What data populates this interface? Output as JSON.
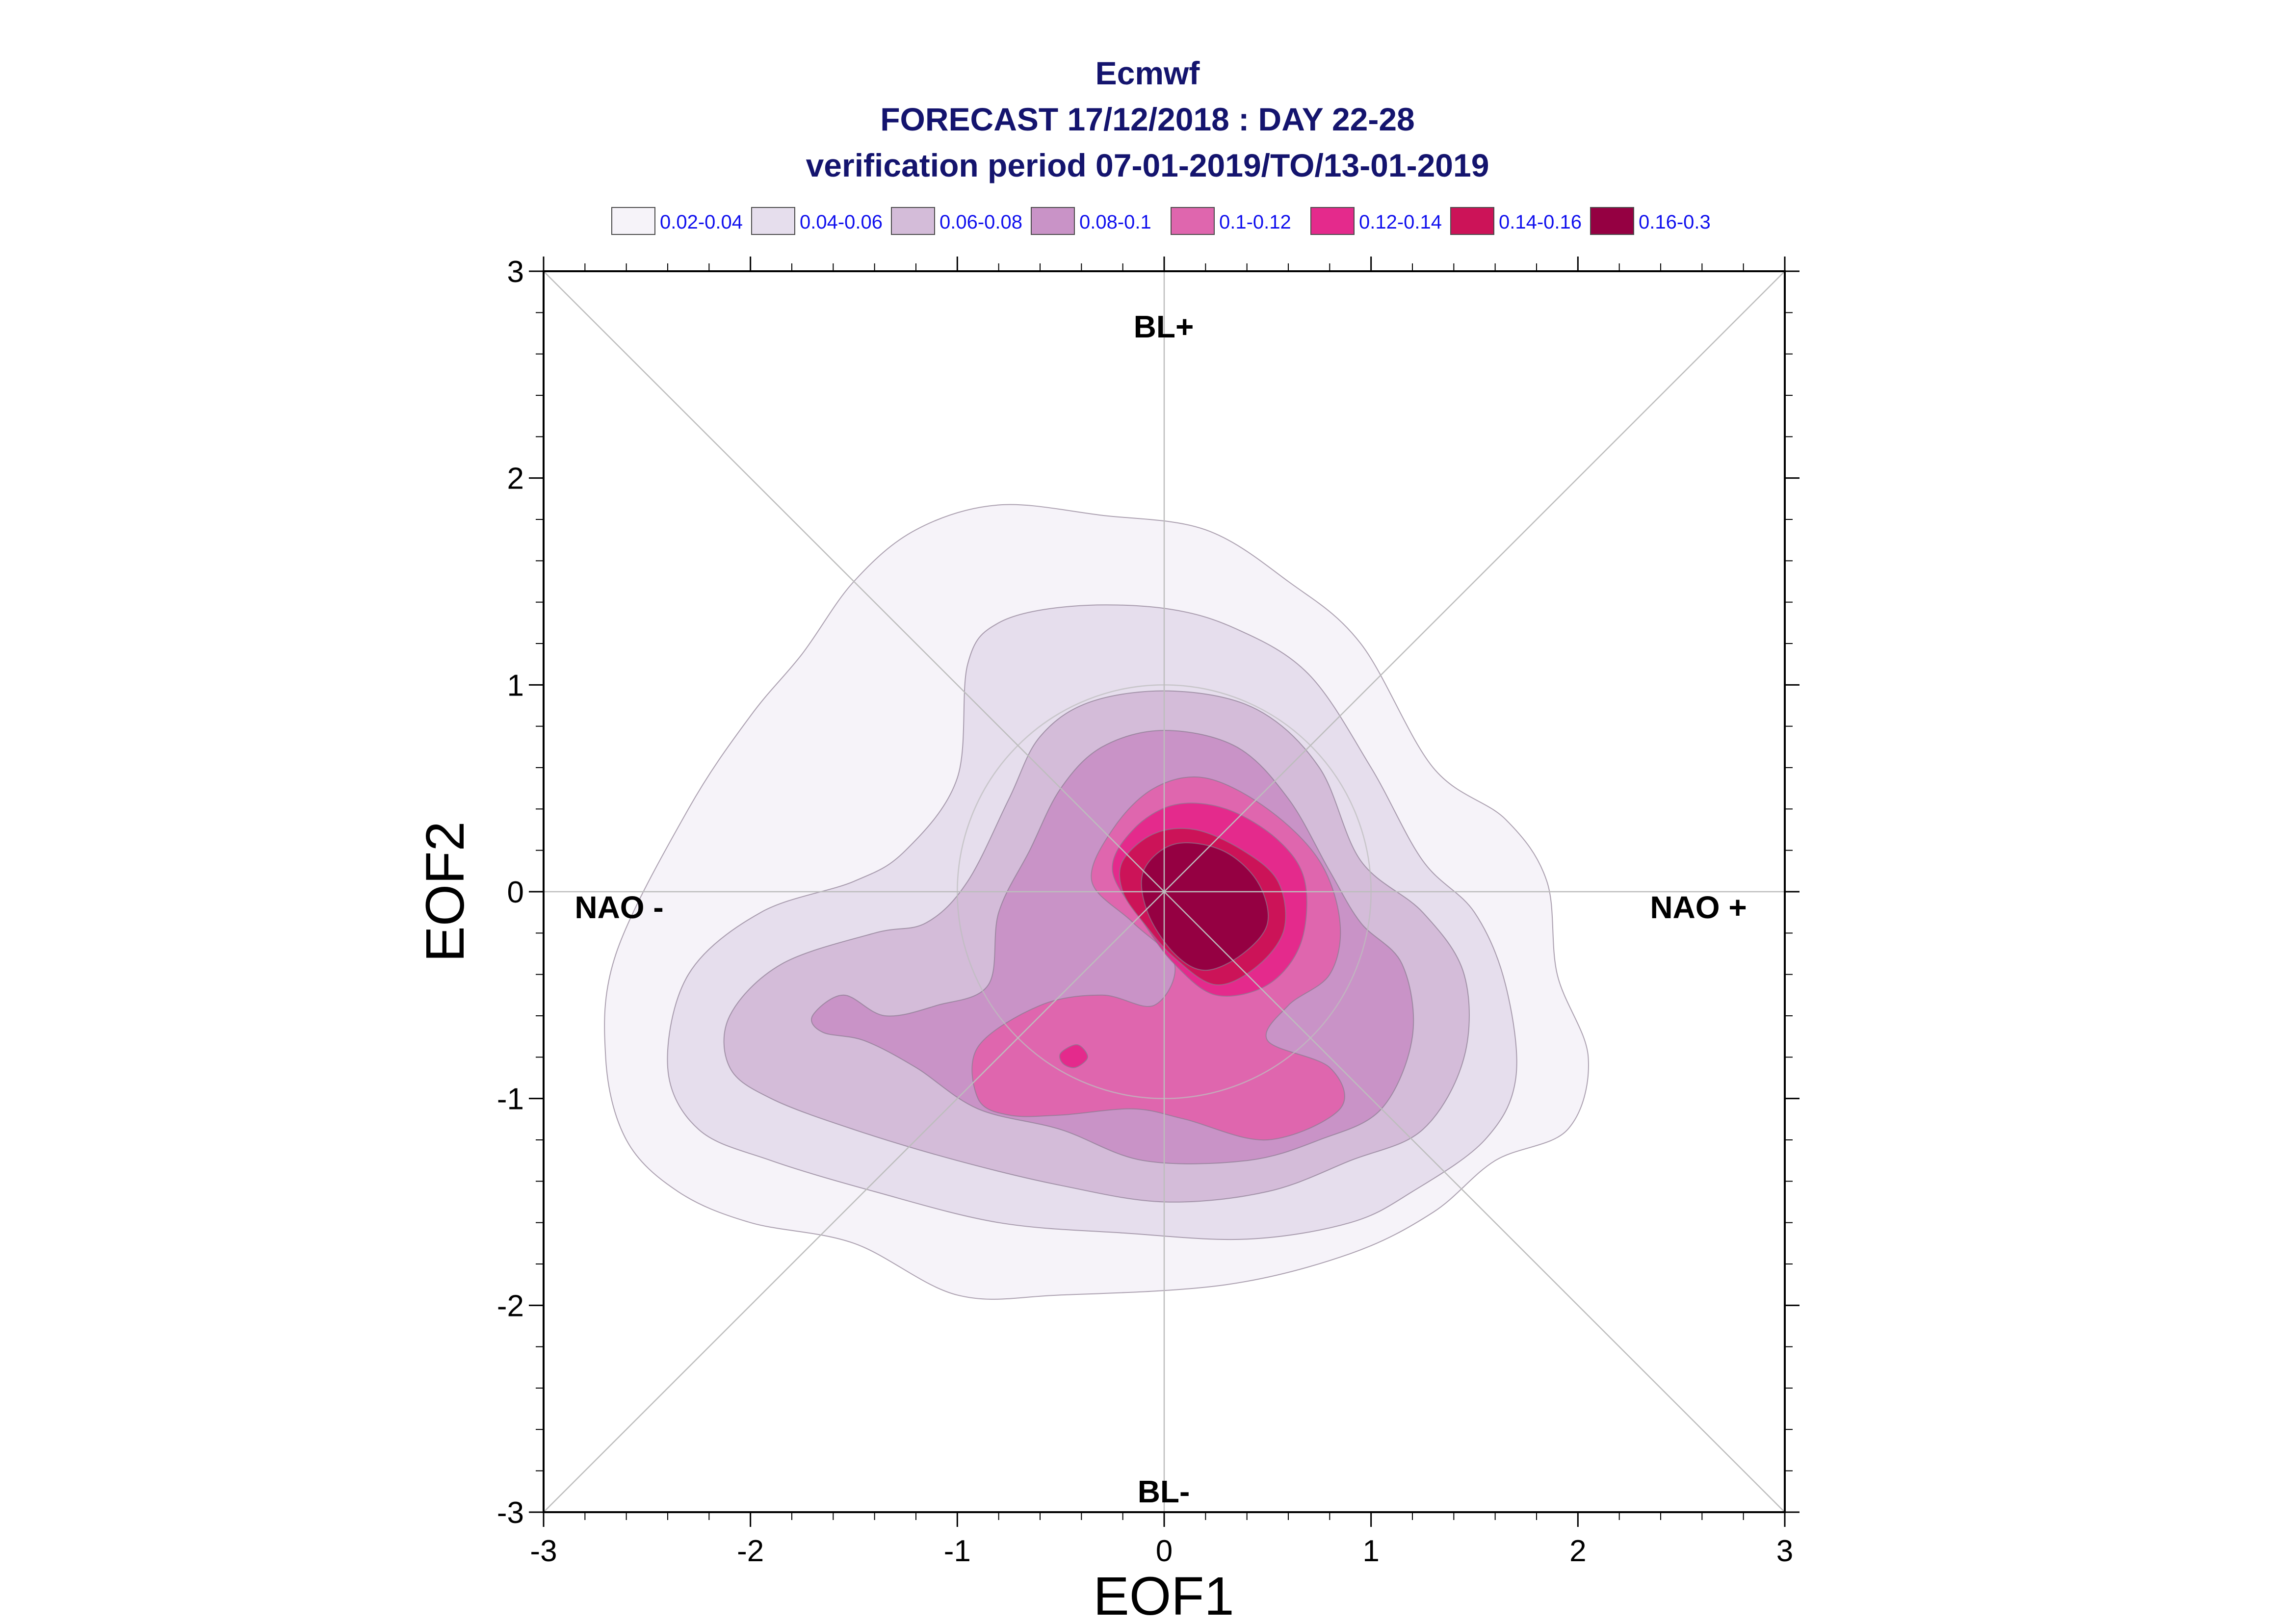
{
  "chart_data": {
    "type": "contour",
    "title": [
      "Ecmwf",
      "FORECAST 17/12/2018 : DAY 22-28",
      "verification period 07-01-2019/TO/13-01-2019"
    ],
    "xlabel": "EOF1",
    "ylabel": "EOF2",
    "xlim": [
      -3,
      3
    ],
    "ylim": [
      -3,
      3
    ],
    "xticks": [
      "-3",
      "-2",
      "-1",
      "0",
      "1",
      "2",
      "3"
    ],
    "yticks": [
      "-3",
      "-2",
      "-1",
      "0",
      "1",
      "2",
      "3"
    ],
    "grid": false,
    "legend_position": "top",
    "legend": [
      {
        "label": "0.02-0.04",
        "color": "#f6f3f9"
      },
      {
        "label": "0.04-0.06",
        "color": "#e6deed"
      },
      {
        "label": "0.06-0.08",
        "color": "#d4bcd9"
      },
      {
        "label": "0.08-0.1",
        "color": "#c993c7"
      },
      {
        "label": "0.1-0.12",
        "color": "#df66ae"
      },
      {
        "label": "0.12-0.14",
        "color": "#e42a8c"
      },
      {
        "label": "0.14-0.16",
        "color": "#cc1358"
      },
      {
        "label": "0.16-0.3",
        "color": "#950042"
      }
    ],
    "regime_labels": {
      "top": "BL+",
      "bottom": "BL-",
      "left": "NAO -",
      "right": "NAO +"
    },
    "reference_circle_radius": 1,
    "contours": [
      {
        "level": "0.02-0.04",
        "points": [
          [
            -2.7,
            -0.8
          ],
          [
            -2.65,
            -0.3
          ],
          [
            -2.3,
            0.4
          ],
          [
            -2.0,
            0.85
          ],
          [
            -1.75,
            1.15
          ],
          [
            -1.5,
            1.5
          ],
          [
            -1.2,
            1.75
          ],
          [
            -0.8,
            1.87
          ],
          [
            -0.3,
            1.82
          ],
          [
            0.2,
            1.75
          ],
          [
            0.6,
            1.5
          ],
          [
            0.95,
            1.2
          ],
          [
            1.3,
            0.6
          ],
          [
            1.65,
            0.35
          ],
          [
            1.85,
            0.05
          ],
          [
            1.9,
            -0.4
          ],
          [
            2.05,
            -0.8
          ],
          [
            1.95,
            -1.15
          ],
          [
            1.6,
            -1.3
          ],
          [
            1.3,
            -1.55
          ],
          [
            0.9,
            -1.75
          ],
          [
            0.3,
            -1.9
          ],
          [
            -0.5,
            -1.95
          ],
          [
            -1.0,
            -1.95
          ],
          [
            -1.5,
            -1.7
          ],
          [
            -2.0,
            -1.6
          ],
          [
            -2.35,
            -1.45
          ],
          [
            -2.6,
            -1.2
          ]
        ]
      },
      {
        "level": "0.04-0.06",
        "points": [
          [
            -2.4,
            -0.85
          ],
          [
            -2.3,
            -0.4
          ],
          [
            -1.95,
            -0.1
          ],
          [
            -1.5,
            0.05
          ],
          [
            -1.25,
            0.2
          ],
          [
            -1.0,
            0.55
          ],
          [
            -0.95,
            1.1
          ],
          [
            -0.8,
            1.3
          ],
          [
            -0.45,
            1.38
          ],
          [
            0.0,
            1.37
          ],
          [
            0.35,
            1.27
          ],
          [
            0.7,
            1.05
          ],
          [
            1.0,
            0.6
          ],
          [
            1.25,
            0.15
          ],
          [
            1.5,
            -0.1
          ],
          [
            1.65,
            -0.45
          ],
          [
            1.7,
            -0.9
          ],
          [
            1.55,
            -1.2
          ],
          [
            1.2,
            -1.45
          ],
          [
            0.9,
            -1.6
          ],
          [
            0.4,
            -1.68
          ],
          [
            -0.2,
            -1.65
          ],
          [
            -0.8,
            -1.6
          ],
          [
            -1.4,
            -1.45
          ],
          [
            -1.9,
            -1.3
          ],
          [
            -2.25,
            -1.15
          ]
        ]
      },
      {
        "level": "0.06-0.08",
        "points": [
          [
            -2.1,
            -0.6
          ],
          [
            -1.85,
            -0.35
          ],
          [
            -1.4,
            -0.2
          ],
          [
            -1.15,
            -0.15
          ],
          [
            -0.95,
            0.05
          ],
          [
            -0.75,
            0.45
          ],
          [
            -0.6,
            0.75
          ],
          [
            -0.35,
            0.92
          ],
          [
            0.05,
            0.97
          ],
          [
            0.45,
            0.88
          ],
          [
            0.75,
            0.6
          ],
          [
            0.95,
            0.15
          ],
          [
            1.25,
            -0.1
          ],
          [
            1.45,
            -0.4
          ],
          [
            1.45,
            -0.8
          ],
          [
            1.25,
            -1.15
          ],
          [
            0.9,
            -1.3
          ],
          [
            0.5,
            -1.45
          ],
          [
            0.0,
            -1.5
          ],
          [
            -0.5,
            -1.42
          ],
          [
            -1.0,
            -1.3
          ],
          [
            -1.5,
            -1.15
          ],
          [
            -1.9,
            -1.0
          ],
          [
            -2.1,
            -0.85
          ]
        ]
      },
      {
        "level": "0.08-0.1",
        "points": [
          [
            -1.7,
            -0.6
          ],
          [
            -1.55,
            -0.5
          ],
          [
            -1.35,
            -0.6
          ],
          [
            -1.1,
            -0.55
          ],
          [
            -0.85,
            -0.45
          ],
          [
            -0.8,
            -0.1
          ],
          [
            -0.65,
            0.2
          ],
          [
            -0.5,
            0.5
          ],
          [
            -0.3,
            0.7
          ],
          [
            0.0,
            0.78
          ],
          [
            0.35,
            0.7
          ],
          [
            0.6,
            0.45
          ],
          [
            0.8,
            0.1
          ],
          [
            0.95,
            -0.15
          ],
          [
            1.15,
            -0.35
          ],
          [
            1.2,
            -0.7
          ],
          [
            1.05,
            -1.05
          ],
          [
            0.75,
            -1.2
          ],
          [
            0.4,
            -1.3
          ],
          [
            -0.1,
            -1.3
          ],
          [
            -0.5,
            -1.15
          ],
          [
            -0.9,
            -1.05
          ],
          [
            -1.2,
            -0.85
          ],
          [
            -1.45,
            -0.72
          ],
          [
            -1.65,
            -0.68
          ]
        ]
      },
      {
        "level": "0.1-0.12",
        "points": [
          [
            -0.9,
            -1.0
          ],
          [
            -0.9,
            -0.75
          ],
          [
            -0.6,
            -0.55
          ],
          [
            -0.3,
            -0.5
          ],
          [
            -0.05,
            -0.55
          ],
          [
            0.05,
            -0.35
          ],
          [
            -0.15,
            -0.15
          ],
          [
            -0.35,
            0.05
          ],
          [
            -0.25,
            0.3
          ],
          [
            -0.05,
            0.5
          ],
          [
            0.2,
            0.55
          ],
          [
            0.5,
            0.4
          ],
          [
            0.75,
            0.15
          ],
          [
            0.85,
            -0.15
          ],
          [
            0.8,
            -0.4
          ],
          [
            0.6,
            -0.55
          ],
          [
            0.5,
            -0.72
          ],
          [
            0.8,
            -0.85
          ],
          [
            0.85,
            -1.05
          ],
          [
            0.5,
            -1.2
          ],
          [
            0.1,
            -1.1
          ],
          [
            -0.15,
            -1.05
          ],
          [
            -0.5,
            -1.08
          ],
          [
            -0.75,
            -1.08
          ]
        ]
      },
      {
        "level": "0.12-0.14",
        "points": [
          [
            -0.25,
            0.1
          ],
          [
            -0.15,
            0.3
          ],
          [
            0.05,
            0.42
          ],
          [
            0.3,
            0.4
          ],
          [
            0.55,
            0.25
          ],
          [
            0.68,
            0.05
          ],
          [
            0.66,
            -0.25
          ],
          [
            0.5,
            -0.45
          ],
          [
            0.25,
            -0.5
          ],
          [
            0.05,
            -0.35
          ],
          [
            -0.1,
            -0.15
          ]
        ]
      },
      {
        "level": "0.12-0.14",
        "points": [
          [
            -0.5,
            -0.78
          ],
          [
            -0.42,
            -0.74
          ],
          [
            -0.37,
            -0.8
          ],
          [
            -0.43,
            -0.85
          ],
          [
            -0.49,
            -0.83
          ]
        ]
      },
      {
        "level": "0.14-0.16",
        "points": [
          [
            -0.2,
            0.15
          ],
          [
            -0.05,
            0.28
          ],
          [
            0.15,
            0.3
          ],
          [
            0.38,
            0.2
          ],
          [
            0.55,
            0.05
          ],
          [
            0.58,
            -0.18
          ],
          [
            0.45,
            -0.36
          ],
          [
            0.25,
            -0.45
          ],
          [
            0.05,
            -0.32
          ],
          [
            -0.1,
            -0.15
          ],
          [
            -0.2,
            0.0
          ]
        ]
      },
      {
        "level": "0.16-0.3",
        "points": [
          [
            -0.1,
            0.1
          ],
          [
            0.05,
            0.23
          ],
          [
            0.28,
            0.2
          ],
          [
            0.45,
            0.05
          ],
          [
            0.5,
            -0.15
          ],
          [
            0.38,
            -0.3
          ],
          [
            0.2,
            -0.38
          ],
          [
            0.05,
            -0.3
          ],
          [
            -0.08,
            -0.1
          ]
        ]
      }
    ]
  }
}
